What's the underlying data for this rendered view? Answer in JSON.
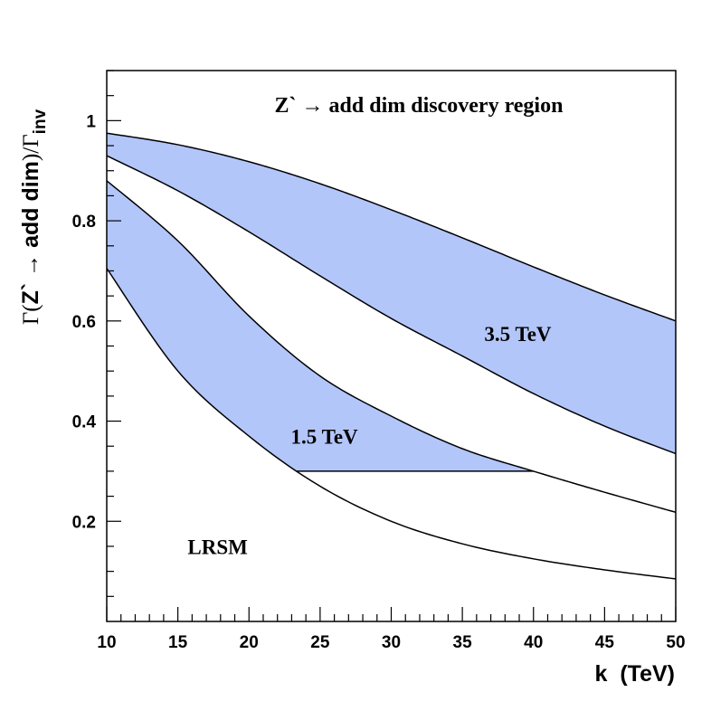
{
  "chart_data": {
    "type": "area",
    "title": "Z` → add dim discovery region",
    "xlabel": "k  (TeV)",
    "ylabel": {
      "prefix": "Γ(",
      "main": "Z` → add dim",
      "suffix": ")/Γ",
      "subscript": "inv"
    },
    "xlim": [
      10,
      50
    ],
    "ylim": [
      0.0,
      1.1
    ],
    "x_ticks": [
      10,
      15,
      20,
      25,
      30,
      35,
      40,
      45,
      50
    ],
    "x_tick_labels": [
      "10",
      "15",
      "20",
      "25",
      "30",
      "35",
      "40",
      "45",
      "50"
    ],
    "y_ticks": [
      0.2,
      0.4,
      0.6,
      0.8,
      1.0
    ],
    "y_tick_labels": [
      "0.2",
      "0.4",
      "0.6",
      "0.8",
      "1"
    ],
    "fill_color": "#b3c6fa",
    "line_color": "#000000",
    "series": [
      {
        "name": "3.5 TeV upper",
        "x": [
          10,
          15,
          20,
          25,
          30,
          35,
          40,
          45,
          50
        ],
        "y": [
          0.975,
          0.952,
          0.918,
          0.874,
          0.822,
          0.766,
          0.708,
          0.652,
          0.6
        ]
      },
      {
        "name": "3.5 TeV lower",
        "x": [
          10,
          15,
          20,
          25,
          30,
          35,
          40,
          45,
          50
        ],
        "y": [
          0.93,
          0.86,
          0.778,
          0.69,
          0.605,
          0.53,
          0.455,
          0.39,
          0.335
        ]
      },
      {
        "name": "1.5 TeV upper",
        "x": [
          10,
          15,
          20,
          25,
          30,
          35,
          40,
          45,
          50
        ],
        "y": [
          0.88,
          0.76,
          0.61,
          0.49,
          0.41,
          0.345,
          0.3,
          0.258,
          0.218
        ]
      },
      {
        "name": "1.5 TeV lower (LRSM)",
        "x": [
          10,
          15,
          20,
          25,
          30,
          35,
          40,
          45,
          50
        ],
        "y": [
          0.705,
          0.5,
          0.37,
          0.27,
          0.2,
          0.155,
          0.125,
          0.103,
          0.085
        ]
      }
    ],
    "bands": [
      {
        "name": "3.5 TeV",
        "upper": "3.5 TeV upper",
        "lower": "3.5 TeV lower"
      },
      {
        "name": "1.5 TeV",
        "upper": "1.5 TeV upper",
        "lower": "1.5 TeV lower (LRSM)",
        "floor": 0.3
      }
    ],
    "annotations": [
      {
        "text": "3.5 TeV",
        "x": 38.9,
        "y": 0.56
      },
      {
        "text": "1.5 TeV",
        "x": 25.3,
        "y": 0.355
      },
      {
        "text": "LRSM",
        "x": 17.8,
        "y": 0.135
      }
    ]
  }
}
